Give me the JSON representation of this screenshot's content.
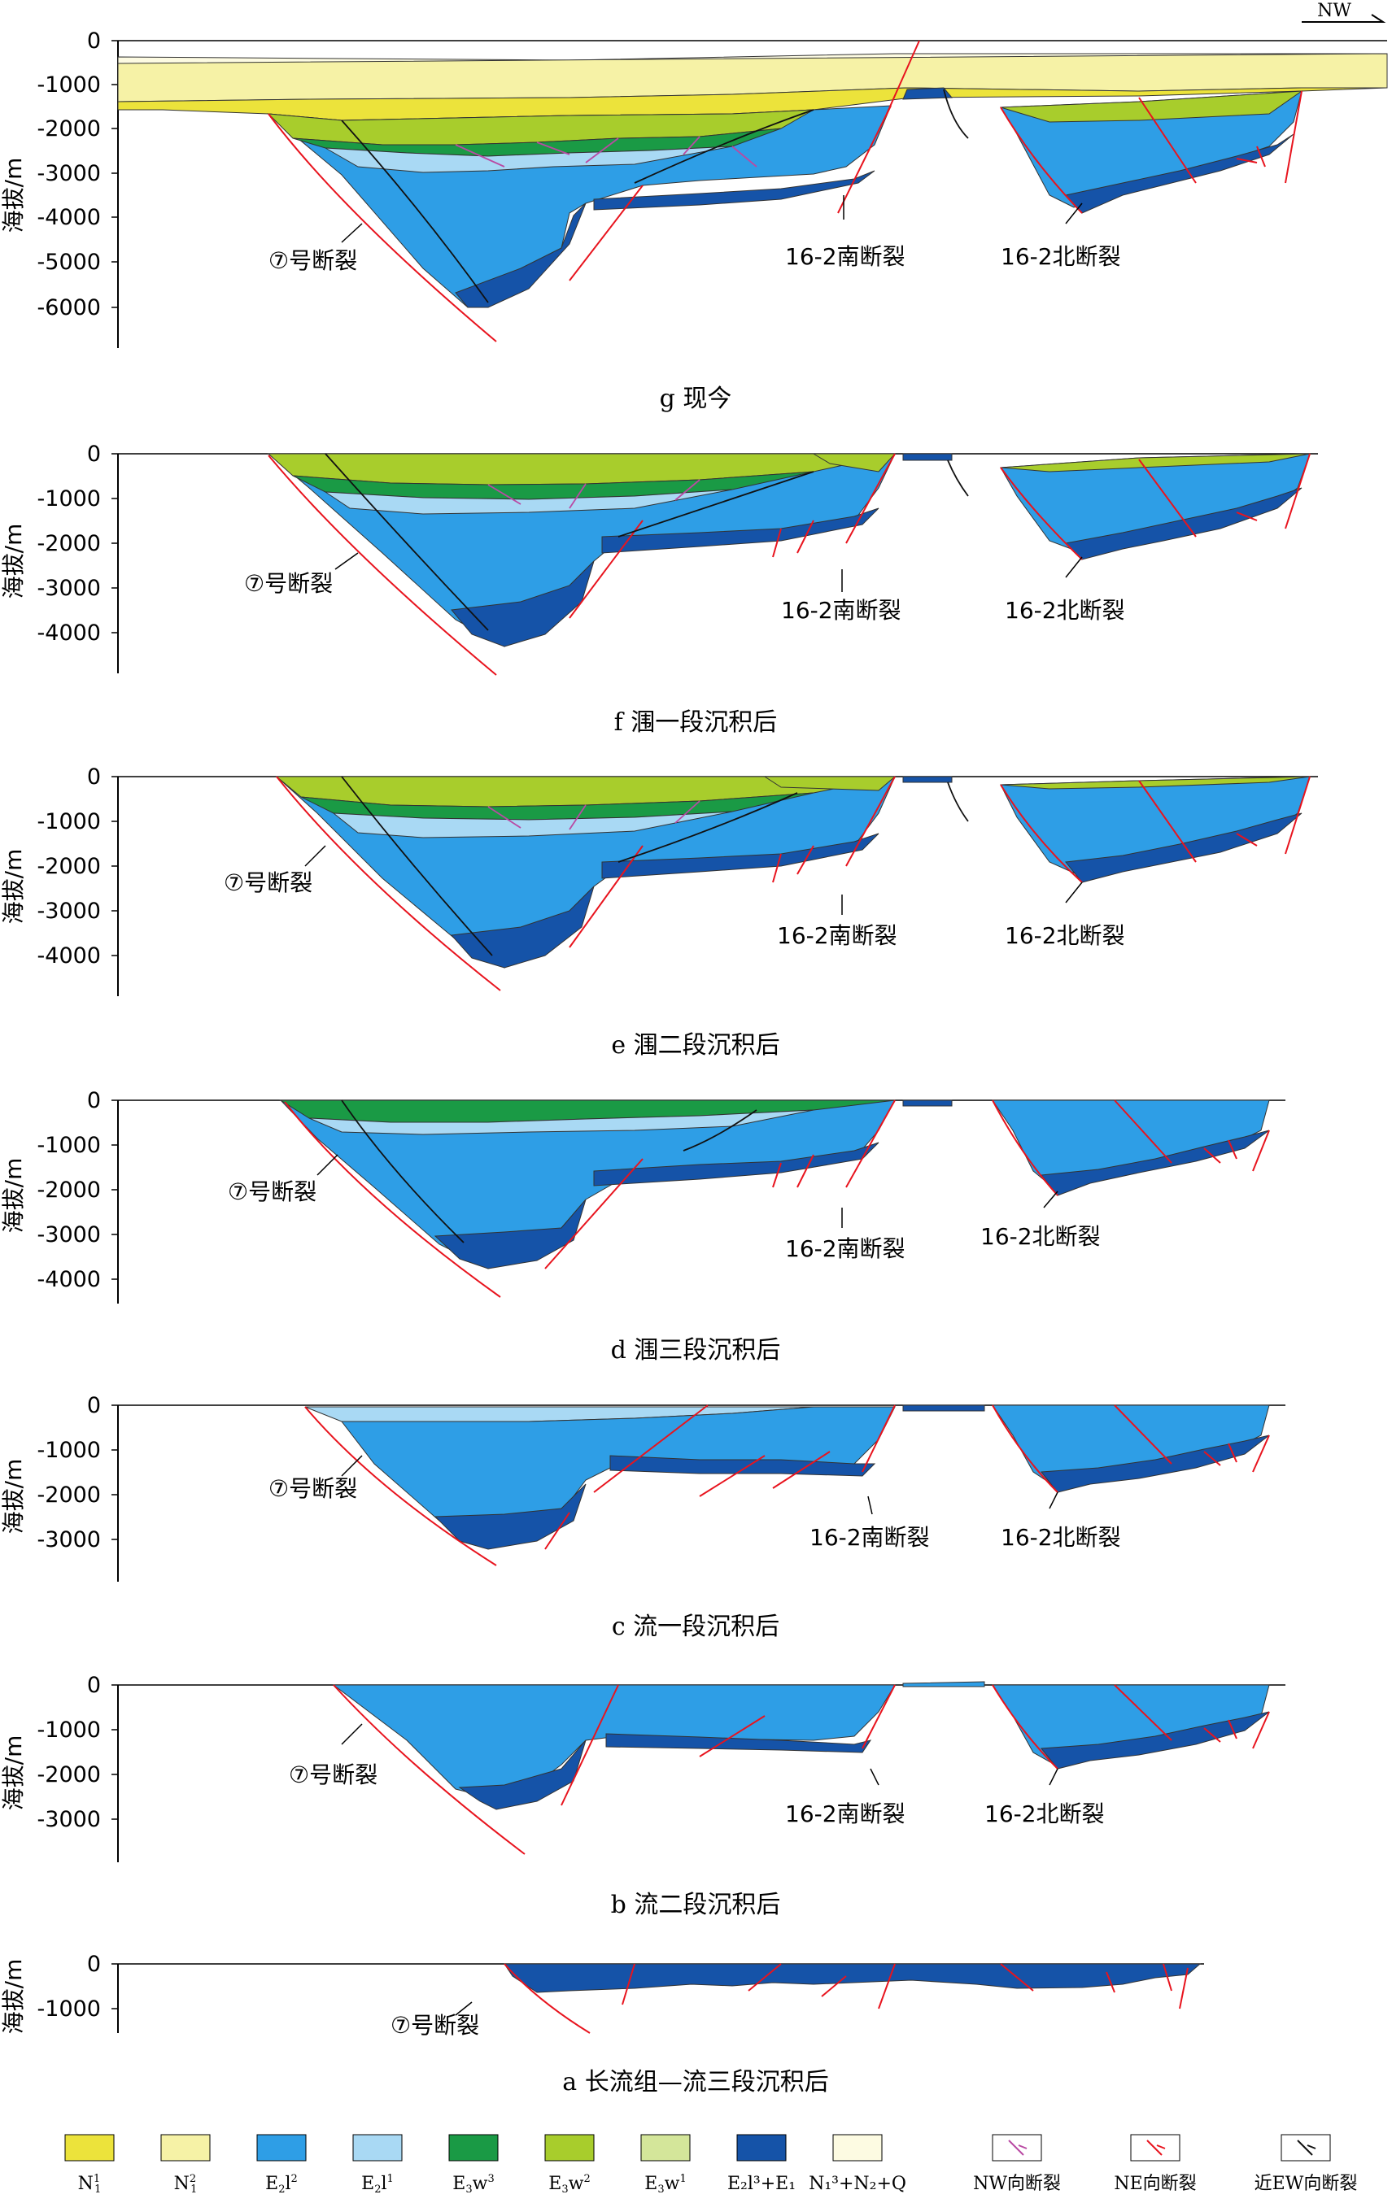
{
  "orientation": "NW",
  "yaxis_label": "海拔/m",
  "colors": {
    "N1_1": "#ece33b",
    "N1_2": "#f6f2a6",
    "N_Q": "#fdfbe2",
    "E2l2": "#2e9ee6",
    "E2l1": "#a9d9f4",
    "E3w3": "#1a9a45",
    "E3w2": "#a8cd2c",
    "E3w1": "#d4e69a",
    "E2l3_E1": "#1553a8",
    "fault_red": "#e8141e",
    "fault_purple": "#b94aa3",
    "fault_black": "#111111"
  },
  "panels": [
    {
      "id": "g",
      "caption": "g  现今",
      "ticks": [
        "0",
        "-1000",
        "-2000",
        "-3000",
        "-4000",
        "-5000",
        "-6000"
      ],
      "fault_labels": [
        "⑦号断裂",
        "16-2南断裂",
        "16-2北断裂"
      ]
    },
    {
      "id": "f",
      "caption": "f  涠一段沉积后",
      "ticks": [
        "0",
        "-1000",
        "-2000",
        "-3000",
        "-4000"
      ],
      "fault_labels": [
        "⑦号断裂",
        "16-2南断裂",
        "16-2北断裂"
      ]
    },
    {
      "id": "e",
      "caption": "e  涠二段沉积后",
      "ticks": [
        "0",
        "-1000",
        "-2000",
        "-3000",
        "-4000"
      ],
      "fault_labels": [
        "⑦号断裂",
        "16-2南断裂",
        "16-2北断裂"
      ]
    },
    {
      "id": "d",
      "caption": "d  涠三段沉积后",
      "ticks": [
        "0",
        "-1000",
        "-2000",
        "-3000",
        "-4000"
      ],
      "fault_labels": [
        "⑦号断裂",
        "16-2南断裂",
        "16-2北断裂"
      ]
    },
    {
      "id": "c",
      "caption": "c  流一段沉积后",
      "ticks": [
        "0",
        "-1000",
        "-2000",
        "-3000"
      ],
      "fault_labels": [
        "⑦号断裂",
        "16-2南断裂",
        "16-2北断裂"
      ]
    },
    {
      "id": "b",
      "caption": "b  流二段沉积后",
      "ticks": [
        "0",
        "-1000",
        "-2000",
        "-3000"
      ],
      "fault_labels": [
        "⑦号断裂",
        "16-2南断裂",
        "16-2北断裂"
      ]
    },
    {
      "id": "a",
      "caption": "a  长流组—流三段沉积后",
      "ticks": [
        "0",
        "-1000"
      ],
      "fault_labels": [
        "⑦号断裂"
      ]
    }
  ],
  "legend": [
    {
      "key": "N1_1",
      "base": "N",
      "sub": "1",
      "sup": "1"
    },
    {
      "key": "N1_2",
      "base": "N",
      "sub": "1",
      "sup": "2"
    },
    {
      "key": "E2l2",
      "base": "E",
      "sub": "2",
      "mid": "l",
      "sup": "2"
    },
    {
      "key": "E2l1",
      "base": "E",
      "sub": "2",
      "mid": "l",
      "sup": "1"
    },
    {
      "key": "E3w3",
      "base": "E",
      "sub": "3",
      "mid": "w",
      "sup": "3"
    },
    {
      "key": "E3w2",
      "base": "E",
      "sub": "3",
      "mid": "w",
      "sup": "2"
    },
    {
      "key": "E3w1",
      "base": "E",
      "sub": "3",
      "mid": "w",
      "sup": "1"
    },
    {
      "key": "E2l3_E1",
      "label": "E₂l³+E₁"
    },
    {
      "key": "N_Q",
      "label": "N₁³+N₂+Q"
    },
    {
      "key": "fault_purple",
      "label": "NW向断裂",
      "symbol": true
    },
    {
      "key": "fault_red",
      "label": "NE向断裂",
      "symbol": true
    },
    {
      "key": "fault_black",
      "label": "近EW向断裂",
      "symbol": true
    }
  ]
}
